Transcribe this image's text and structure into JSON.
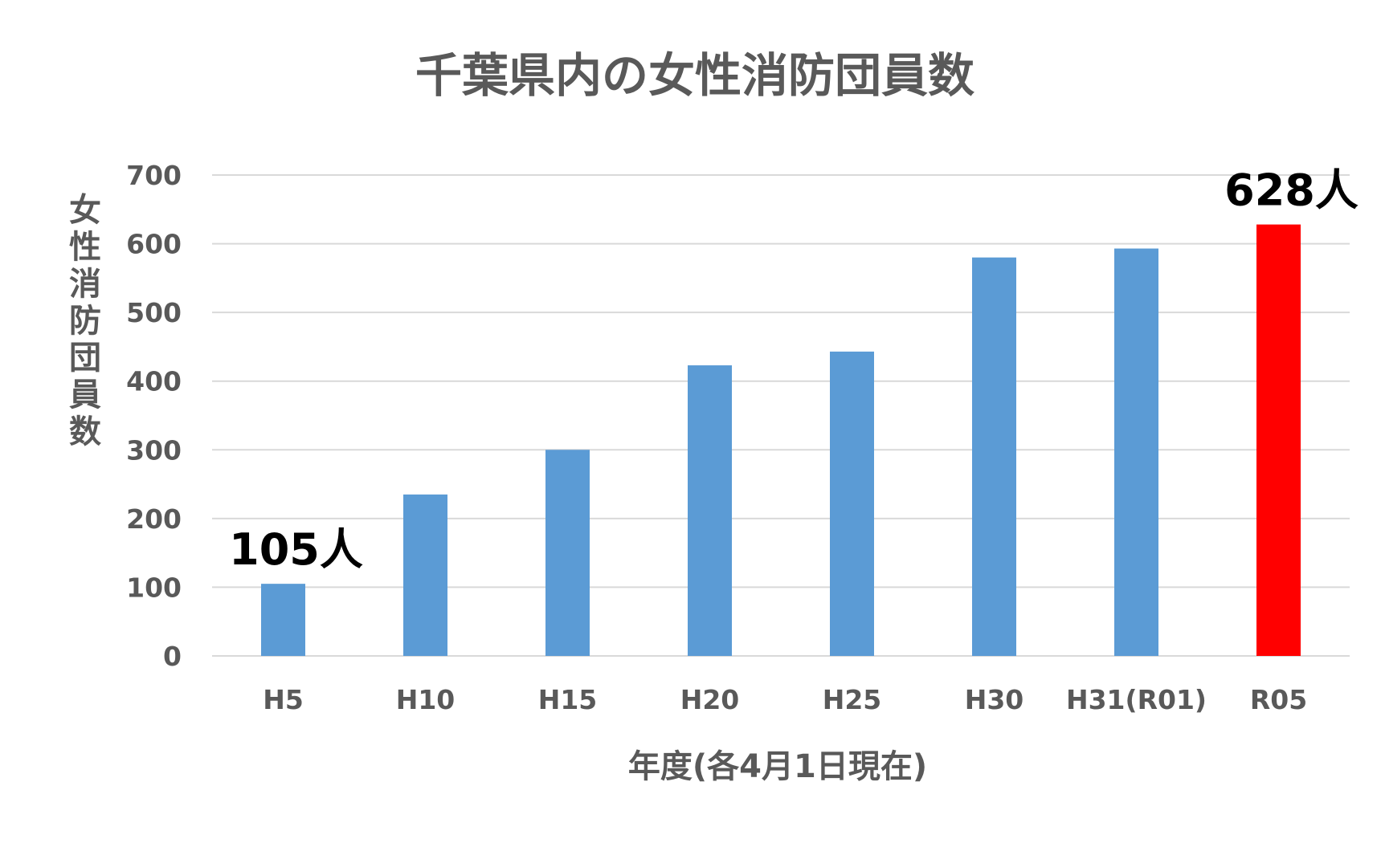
{
  "chart_data": {
    "type": "bar",
    "title": "千葉県内の女性消防団員数",
    "xlabel": "年度(各4月1日現在)",
    "ylabel": "女性消防団員数",
    "categories": [
      "H5",
      "H10",
      "H15",
      "H20",
      "H25",
      "H30",
      "H31(R01)",
      "R05"
    ],
    "values": [
      105,
      235,
      300,
      423,
      443,
      580,
      593,
      628
    ],
    "ylim": [
      0,
      700
    ],
    "yticks": [
      0,
      100,
      200,
      300,
      400,
      500,
      600,
      700
    ],
    "grid": true,
    "bar_colors": [
      "#5b9bd5",
      "#5b9bd5",
      "#5b9bd5",
      "#5b9bd5",
      "#5b9bd5",
      "#5b9bd5",
      "#5b9bd5",
      "#ff0000"
    ],
    "annotations": [
      {
        "index": 0,
        "text": "105人"
      },
      {
        "index": 7,
        "text": "628人"
      }
    ]
  }
}
